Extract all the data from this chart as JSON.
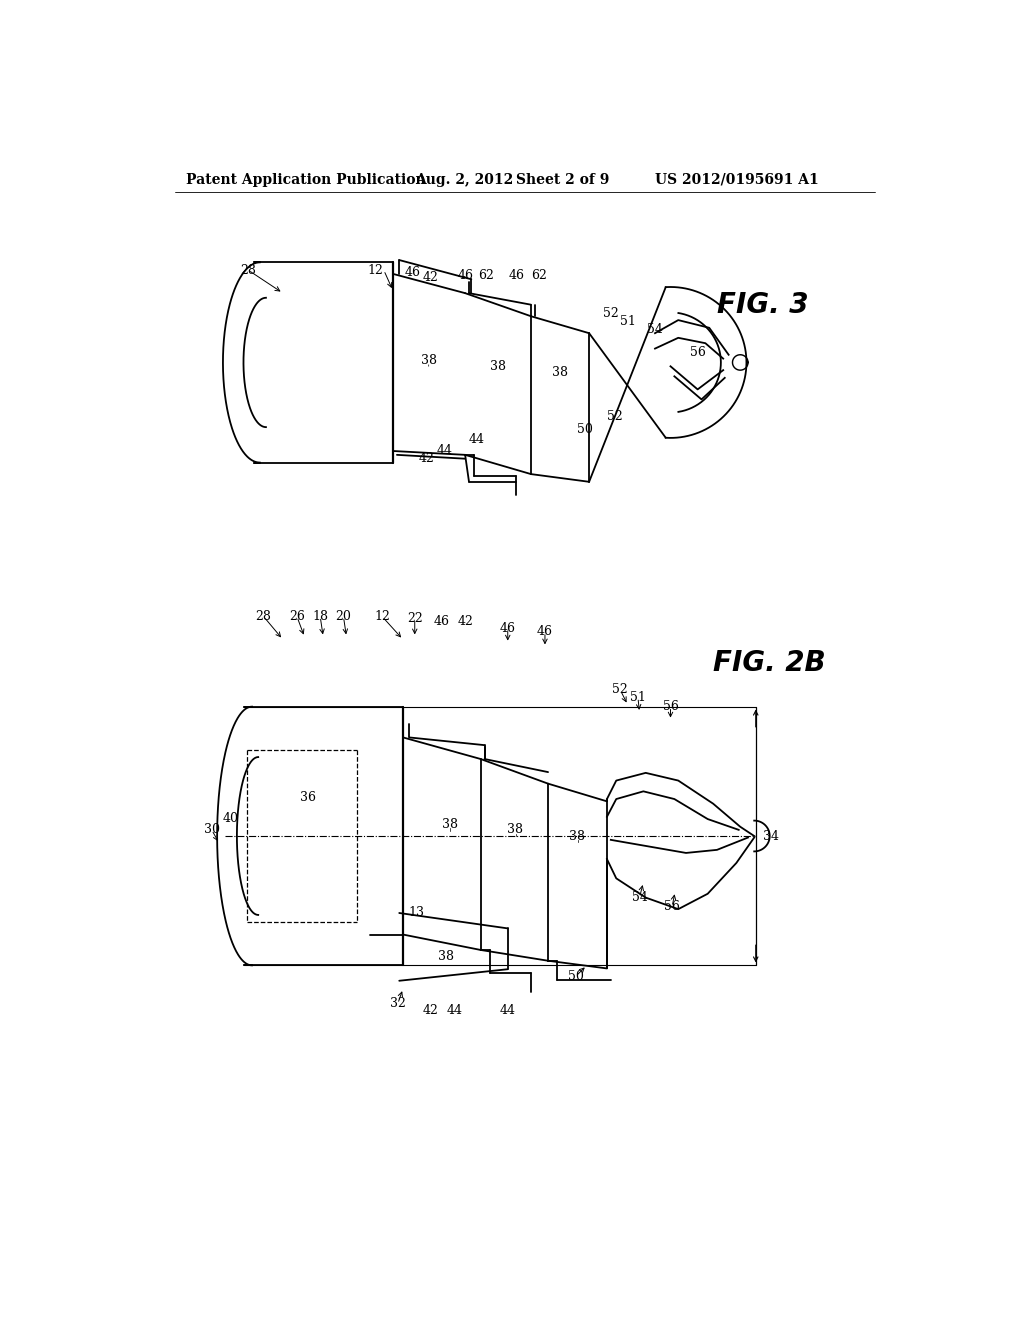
{
  "background_color": "#ffffff",
  "line_color": "#000000",
  "header_text": "Patent Application Publication",
  "header_date": "Aug. 2, 2012",
  "header_sheet": "Sheet 2 of 9",
  "header_patent": "US 2012/0195691 A1",
  "fig3_label": "FIG. 3",
  "fig2b_label": "FIG. 2B",
  "font_size_header": 10,
  "font_size_ref": 9,
  "font_size_fig": 20
}
